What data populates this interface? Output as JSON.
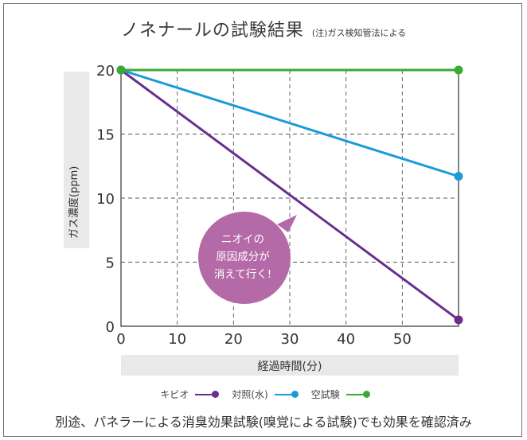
{
  "title": "ノネナールの試験結果",
  "note": "(注)ガス検知管法による",
  "footer": "別途、パネラーによる消臭効果試験(嗅覚による試験)でも効果を確認済み",
  "bubble": "ニオイの\n原因成分が\n消えて行く!",
  "chart_data": {
    "type": "line",
    "xlabel": "経過時間(分)",
    "ylabel": "ガス濃度(ppm)",
    "xlim": [
      0,
      60
    ],
    "ylim": [
      0,
      20
    ],
    "xticks": [
      0,
      10,
      20,
      30,
      40,
      50
    ],
    "yticks": [
      0,
      5,
      10,
      15,
      20
    ],
    "grid": true,
    "legend_position": "bottom",
    "series": [
      {
        "name": "キビオ",
        "color": "#6a2e8c",
        "x": [
          0,
          60
        ],
        "y": [
          20,
          0.5
        ]
      },
      {
        "name": "対照(水)",
        "color": "#1a9ad6",
        "x": [
          0,
          60
        ],
        "y": [
          20,
          11.7
        ]
      },
      {
        "name": "空試験",
        "color": "#3aaa35",
        "x": [
          0,
          60
        ],
        "y": [
          20,
          20
        ]
      }
    ]
  }
}
